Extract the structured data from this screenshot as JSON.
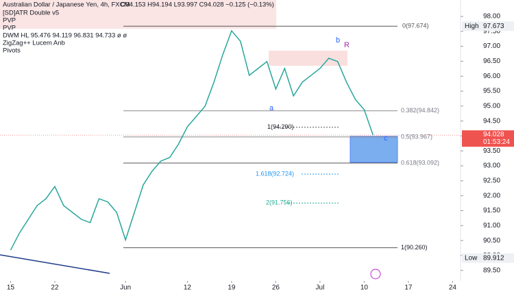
{
  "header": {
    "symbol": "Australian Dollar / Japanese Yen, 4h, FXCM",
    "ohlc": "O94.153 H94.194 L93.997 C94.028 −0.125 (−0.13%)",
    "indicators": [
      "[SD]ATR Double v5",
      "PVP",
      "PVP",
      "DWM HL  95.476  94.119  96.831  94.733  ø  ø",
      "ZigZag++ Lucem Anb",
      "Pivots"
    ]
  },
  "chart_data": {
    "type": "line",
    "x": [
      0,
      1,
      2,
      3,
      4,
      5,
      6,
      7,
      8,
      9,
      10,
      11,
      12,
      13,
      14,
      15,
      16,
      17,
      18,
      19,
      20,
      21,
      22,
      23,
      24,
      25,
      26,
      27,
      28,
      29,
      30,
      31,
      32,
      33,
      34,
      35,
      36,
      37,
      38,
      39,
      40,
      41
    ],
    "series": [
      {
        "name": "AUD/JPY",
        "color": "#26a69a",
        "values": [
          90.18,
          90.75,
          91.21,
          91.67,
          91.9,
          92.31,
          91.67,
          91.44,
          91.21,
          91.1,
          91.9,
          91.79,
          91.44,
          90.52,
          91.44,
          92.36,
          92.82,
          93.16,
          93.28,
          93.73,
          94.31,
          94.65,
          95.0,
          95.8,
          96.72,
          97.52,
          97.17,
          96.03,
          96.26,
          96.49,
          95.57,
          96.26,
          95.34,
          95.8,
          96.03,
          96.26,
          96.6,
          96.49,
          95.8,
          95.22,
          94.88,
          94.03
        ]
      }
    ],
    "xlim": [
      -1.2,
      50.9
    ],
    "xticks": [
      {
        "value": 0,
        "label": "15"
      },
      {
        "value": 5,
        "label": "22"
      },
      {
        "value": 13,
        "label": "Jun"
      },
      {
        "value": 20,
        "label": "12"
      },
      {
        "value": 25,
        "label": "19"
      },
      {
        "value": 30,
        "label": "26"
      },
      {
        "value": 35,
        "label": "Jul"
      },
      {
        "value": 40,
        "label": "10"
      },
      {
        "value": 45,
        "label": "17"
      },
      {
        "value": 50,
        "label": "24"
      }
    ],
    "ylim": [
      89.15,
      98.55
    ],
    "yticks": [
      {
        "value": 89.5,
        "label": "89.50"
      },
      {
        "value": 90,
        "label": "90.00"
      },
      {
        "value": 90.5,
        "label": "90.50"
      },
      {
        "value": 91,
        "label": "91.00"
      },
      {
        "value": 91.5,
        "label": "91.50"
      },
      {
        "value": 92,
        "label": "92.00"
      },
      {
        "value": 92.5,
        "label": "92.50"
      },
      {
        "value": 93,
        "label": "93.00"
      },
      {
        "value": 93.5,
        "label": "93.50"
      },
      {
        "value": 94,
        "label": "94.00"
      },
      {
        "value": 94.5,
        "label": "94.50"
      },
      {
        "value": 95,
        "label": "95.00"
      },
      {
        "value": 95.5,
        "label": "95.50"
      },
      {
        "value": 96,
        "label": "96.00"
      },
      {
        "value": 96.5,
        "label": "96.50"
      },
      {
        "value": 97,
        "label": "97.00"
      },
      {
        "value": 97.5,
        "label": "97.50"
      },
      {
        "value": 98,
        "label": "98.00"
      }
    ],
    "fib_levels": [
      {
        "label": "0(97.674)",
        "value": 97.674
      },
      {
        "label": "0.382(94.842)",
        "value": 94.842
      },
      {
        "label": "0.5(93.967)",
        "value": 93.967
      },
      {
        "label": "0.618(93.092)",
        "value": 93.092
      },
      {
        "label": "1(94.290)",
        "value": 94.29
      },
      {
        "label": "1.618(92.724)",
        "value": 92.724
      },
      {
        "label": "2(91.756)",
        "value": 91.756
      },
      {
        "label": "1(90.260)",
        "value": 90.26
      }
    ],
    "markers": [
      {
        "name": "High",
        "value": 97.673
      },
      {
        "name": "Low",
        "value": 89.912
      }
    ],
    "current": {
      "value": 94.028,
      "countdown": "01:53:24"
    },
    "waves": [
      "a",
      "b",
      "c",
      "R"
    ]
  }
}
